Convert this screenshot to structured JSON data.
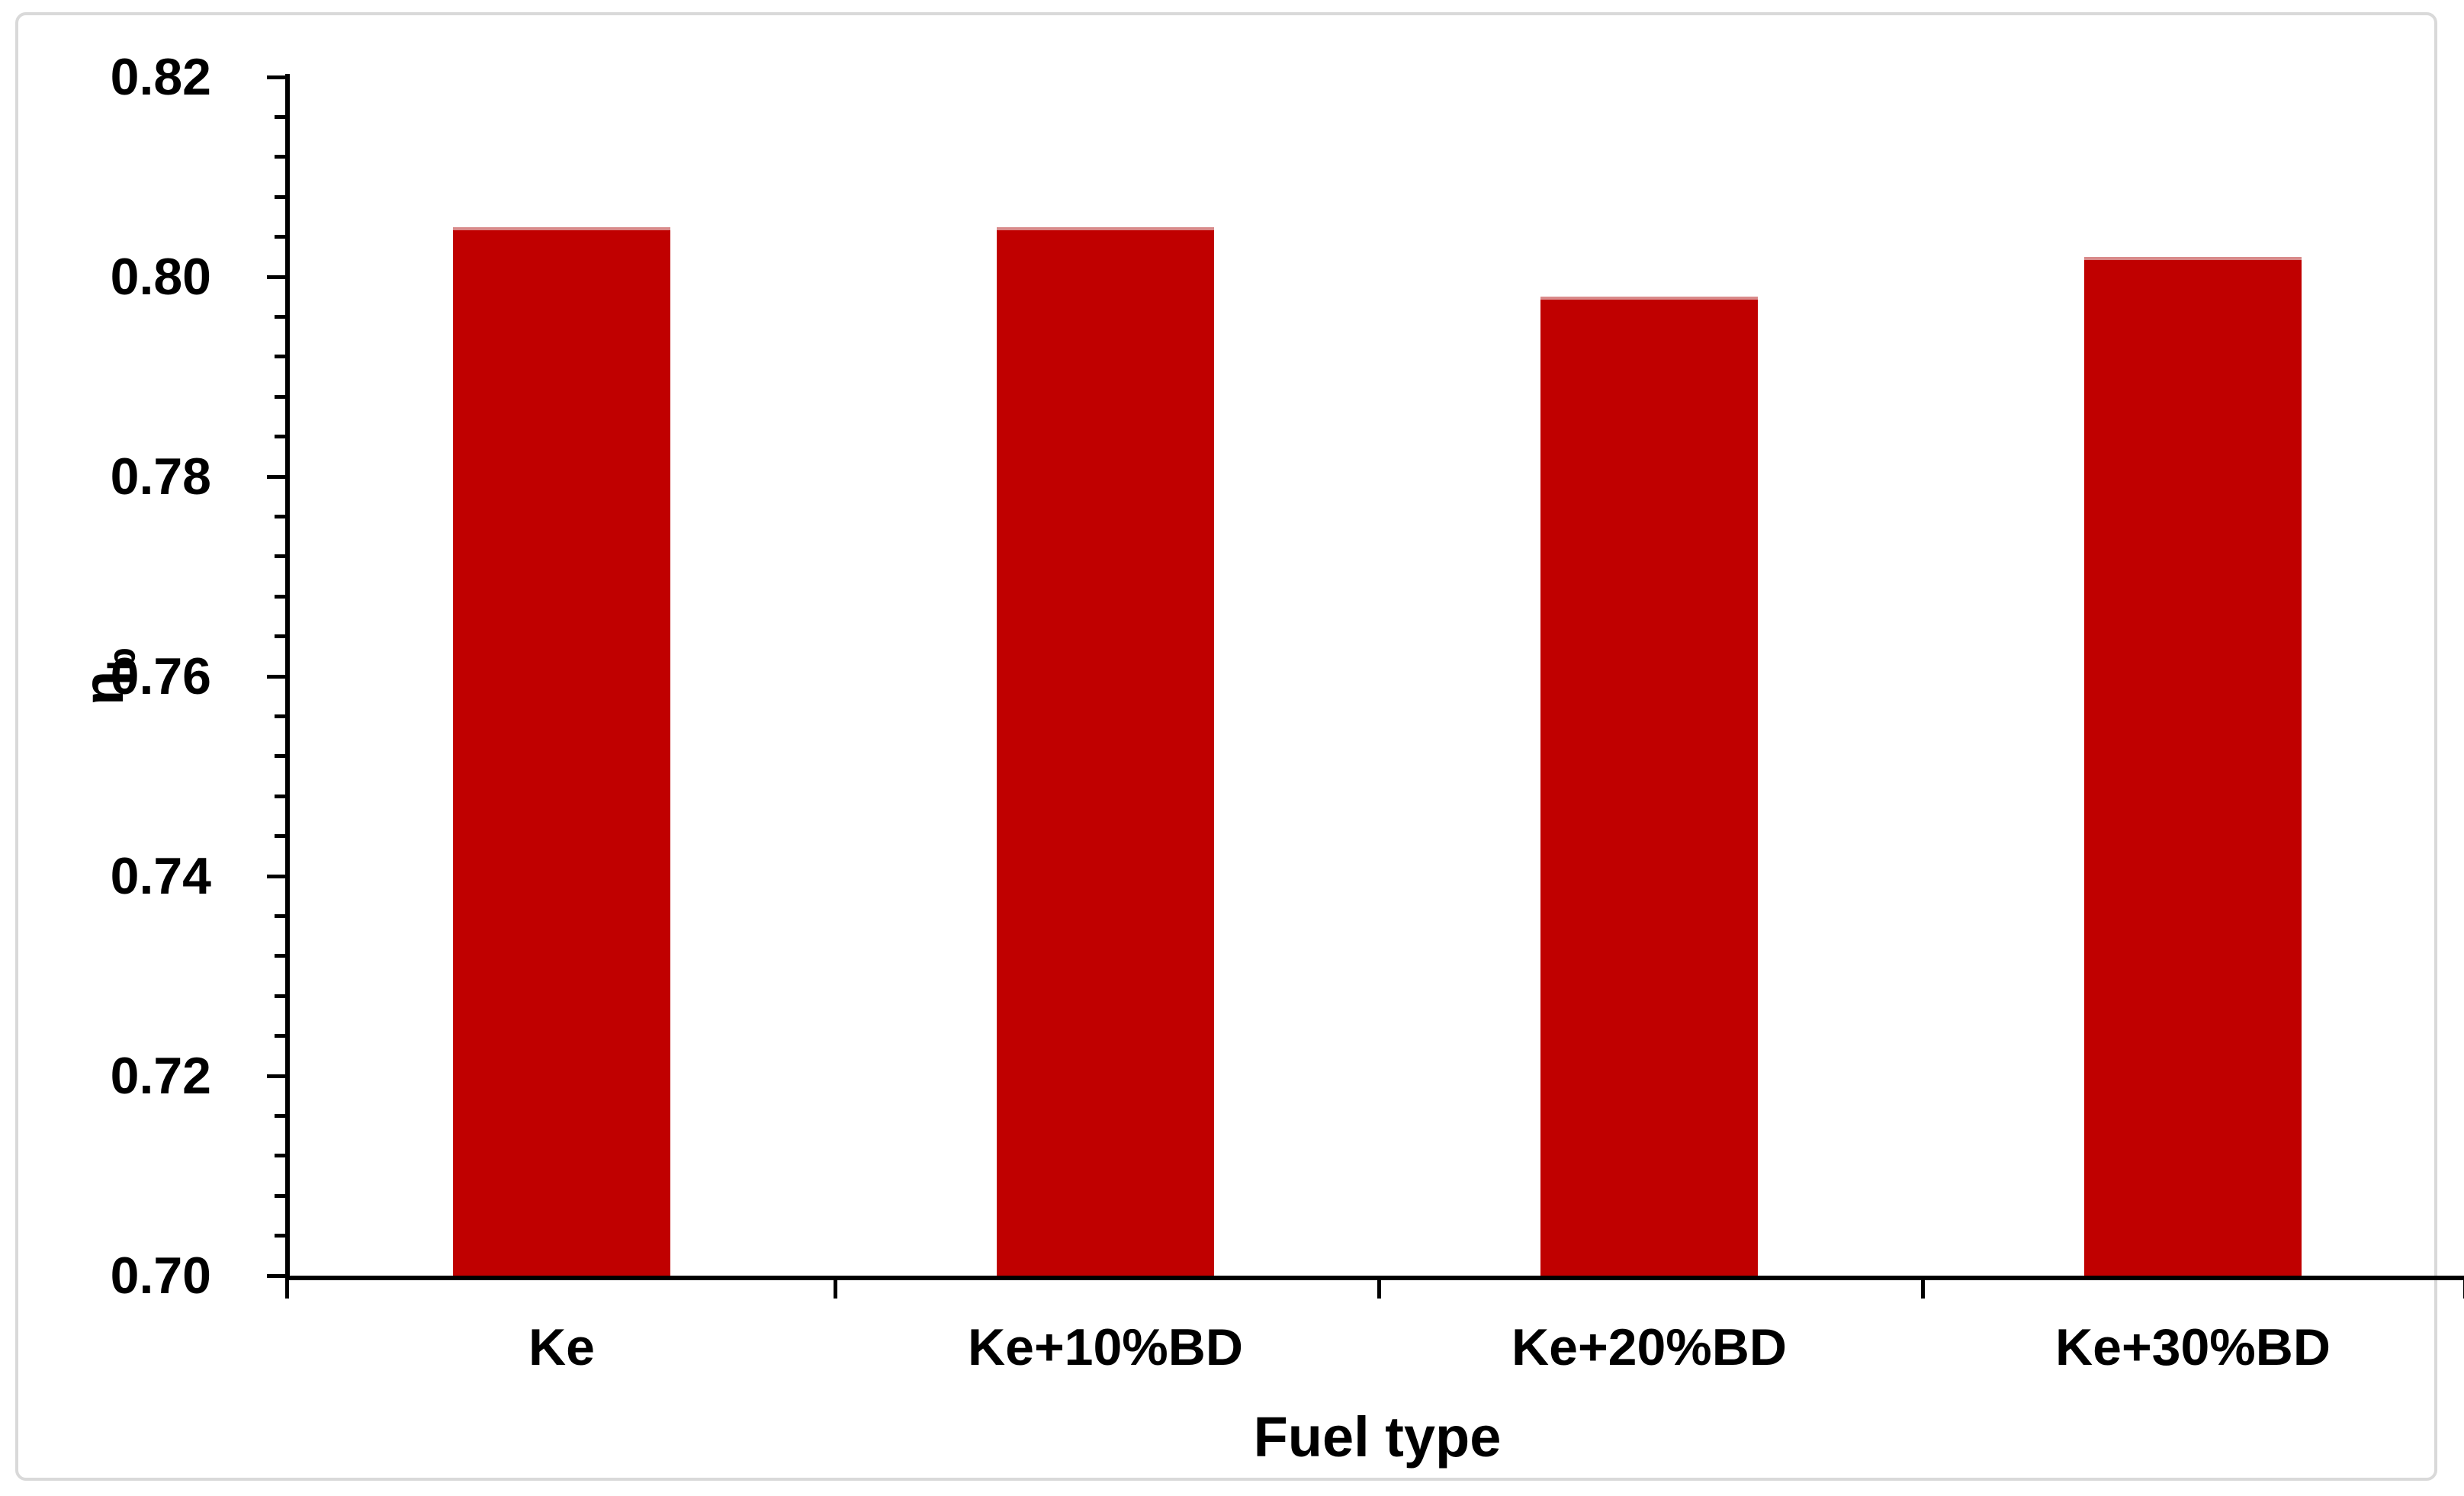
{
  "figure": {
    "background": "#FFFFFF",
    "border_color": "#D9D9D9"
  },
  "chart_data": {
    "type": "bar",
    "title": "",
    "categories": [
      "Ke",
      "Ke+10%BD",
      "Ke+20%BD",
      "Ke+30%BD"
    ],
    "values": [
      0.805,
      0.805,
      0.798,
      0.802
    ],
    "xlabel": "Fuel type",
    "ylabel_main": "η",
    "ylabel_subscript": "b",
    "ylim": [
      0.7,
      0.82
    ],
    "y_major_tick": 0.02,
    "y_minor_tick": 0.004,
    "y_tick_labels": [
      "0.70",
      "0.72",
      "0.74",
      "0.76",
      "0.78",
      "0.80",
      "0.82"
    ],
    "bar_color": "#C00000",
    "axis_color": "#000000",
    "grid": false,
    "legend": false,
    "bar_width_fraction": 0.4
  }
}
